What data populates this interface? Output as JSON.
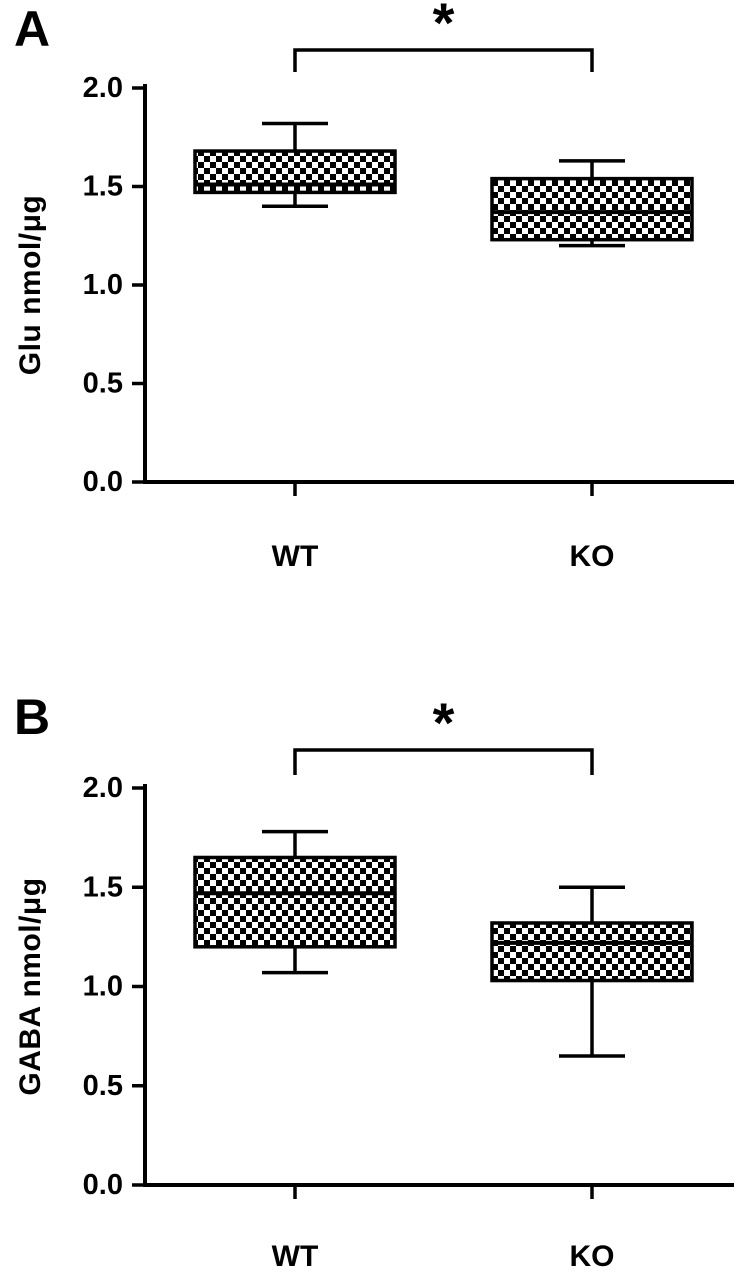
{
  "figure": {
    "background": "#ffffff",
    "ink_color": "#000000",
    "box_fill_pattern": "black-white-checkerboard"
  },
  "chart_data": [
    {
      "type": "box",
      "panel_label": "A",
      "title": "",
      "xlabel": "",
      "ylabel": "Glu nmol/μg",
      "categories": [
        "WT",
        "KO"
      ],
      "ylim": [
        0.0,
        2.0
      ],
      "yticks": [
        0.0,
        0.5,
        1.0,
        1.5,
        2.0
      ],
      "ytick_labels": [
        "0.0",
        "0.5",
        "1.0",
        "1.5",
        "2.0"
      ],
      "grid": false,
      "legend": false,
      "series": [
        {
          "name": "WT",
          "whisker_low": 1.4,
          "q1": 1.47,
          "median": 1.51,
          "q3": 1.68,
          "whisker_high": 1.82
        },
        {
          "name": "KO",
          "whisker_low": 1.2,
          "q1": 1.23,
          "median": 1.37,
          "q3": 1.54,
          "whisker_high": 1.63
        }
      ],
      "significance": {
        "label": "*",
        "between": [
          "WT",
          "KO"
        ]
      }
    },
    {
      "type": "box",
      "panel_label": "B",
      "title": "",
      "xlabel": "",
      "ylabel": "GABA nmol/μg",
      "categories": [
        "WT",
        "KO"
      ],
      "ylim": [
        0.0,
        2.0
      ],
      "yticks": [
        0.0,
        0.5,
        1.0,
        1.5,
        2.0
      ],
      "ytick_labels": [
        "0.0",
        "0.5",
        "1.0",
        "1.5",
        "2.0"
      ],
      "grid": false,
      "legend": false,
      "series": [
        {
          "name": "WT",
          "whisker_low": 1.07,
          "q1": 1.2,
          "median": 1.47,
          "q3": 1.65,
          "whisker_high": 1.78
        },
        {
          "name": "KO",
          "whisker_low": 0.65,
          "q1": 1.03,
          "median": 1.22,
          "q3": 1.32,
          "whisker_high": 1.5
        }
      ],
      "significance": {
        "label": "*",
        "between": [
          "WT",
          "KO"
        ]
      }
    }
  ]
}
